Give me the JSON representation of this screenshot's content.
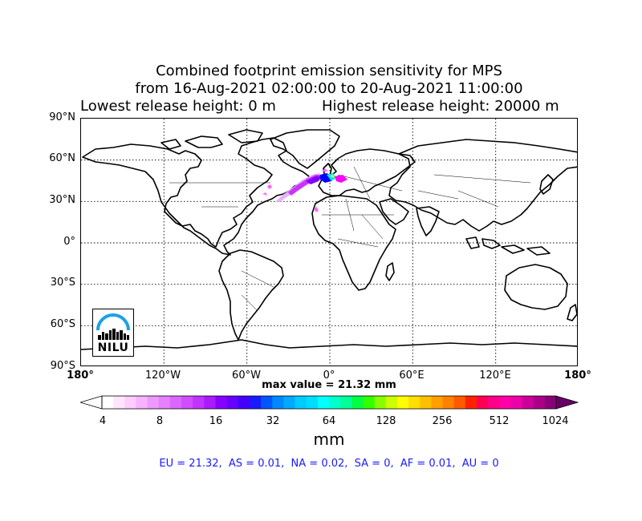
{
  "title": {
    "line1": "Combined footprint emission sensitivity for MPS",
    "line2": "from 16-Aug-2021 02:00:00 to 20-Aug-2021 11:00:00",
    "lowest_release": "Lowest release height: 0 m",
    "highest_release": "Highest release height: 20000 m"
  },
  "map": {
    "projection": "cylindrical",
    "lon_range": [
      -180,
      180
    ],
    "lat_range": [
      -90,
      90
    ],
    "grid_lines": "dotted",
    "lat_labels": [
      "90°N",
      "60°N",
      "30°N",
      "0°",
      "30°S",
      "60°S",
      "90°S"
    ],
    "lon_labels": [
      "180°",
      "120°W",
      "60°W",
      "0°",
      "60°E",
      "120°E",
      "180°"
    ],
    "plume_colors": [
      "#ff00ff",
      "#cc33ff",
      "#8000ff",
      "#0000ff",
      "#00e5ff",
      "#ffff00",
      "#e0a0ff"
    ]
  },
  "max_value": "max value = 21.32 mm",
  "colorbar": {
    "ticks": [
      "4",
      "8",
      "16",
      "32",
      "64",
      "128",
      "256",
      "512",
      "1024"
    ],
    "unit": "mm",
    "colors": [
      "#ffffff",
      "#ffe6ff",
      "#ffccff",
      "#f7b3ff",
      "#ee99ff",
      "#e680ff",
      "#dd66ff",
      "#d24dff",
      "#c133ff",
      "#aa1aff",
      "#8800ff",
      "#6600ff",
      "#4400ff",
      "#1a1aff",
      "#0055ff",
      "#0088ff",
      "#00aaff",
      "#00ccff",
      "#00ddff",
      "#00ffff",
      "#00ffcc",
      "#00ff99",
      "#00ff44",
      "#33ff00",
      "#88ff00",
      "#ccff00",
      "#ffff00",
      "#ffe000",
      "#ffc000",
      "#ffa000",
      "#ff8000",
      "#ff5a00",
      "#ff2200",
      "#ff0055",
      "#ff0088",
      "#ff00aa",
      "#ee00aa",
      "#cc0099",
      "#aa0088",
      "#880077"
    ],
    "extend_high_color": "#660066"
  },
  "footer": {
    "stats": "EU = 21.32,  AS = 0.01,  NA = 0.02,  SA = 0,  AF = 0.01,  AU = 0"
  },
  "logo": {
    "text": "NILU",
    "arc_color": "#1ea0e6",
    "name": "nilu-logo"
  }
}
